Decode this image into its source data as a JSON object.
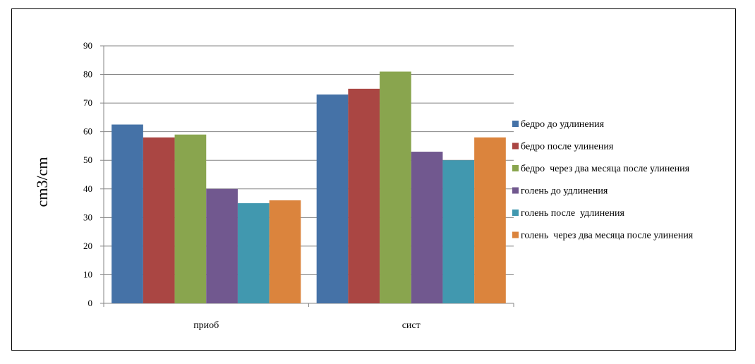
{
  "chart_data": {
    "type": "bar",
    "ylabel": "cm3/cm",
    "xlabel": "",
    "ylim": [
      0,
      90
    ],
    "ytick_step": 10,
    "grid": true,
    "legend_position": "right",
    "categories": [
      "приоб",
      "сист"
    ],
    "series": [
      {
        "name": "бедро до удлинения",
        "color": "#4572A7",
        "values": [
          62.5,
          73
        ]
      },
      {
        "name": "бедро после улинения",
        "color": "#AA4643",
        "values": [
          58,
          75
        ]
      },
      {
        "name": "бедро  через два месяца после улинения",
        "color": "#89A54E",
        "values": [
          59,
          81
        ]
      },
      {
        "name": "голень до удлинения",
        "color": "#71588F",
        "values": [
          40,
          53
        ]
      },
      {
        "name": "голень после  удлинения",
        "color": "#4198AF",
        "values": [
          35,
          50
        ]
      },
      {
        "name": "голень  через два месяца после улинения",
        "color": "#DB843D",
        "values": [
          36,
          58
        ]
      }
    ]
  }
}
